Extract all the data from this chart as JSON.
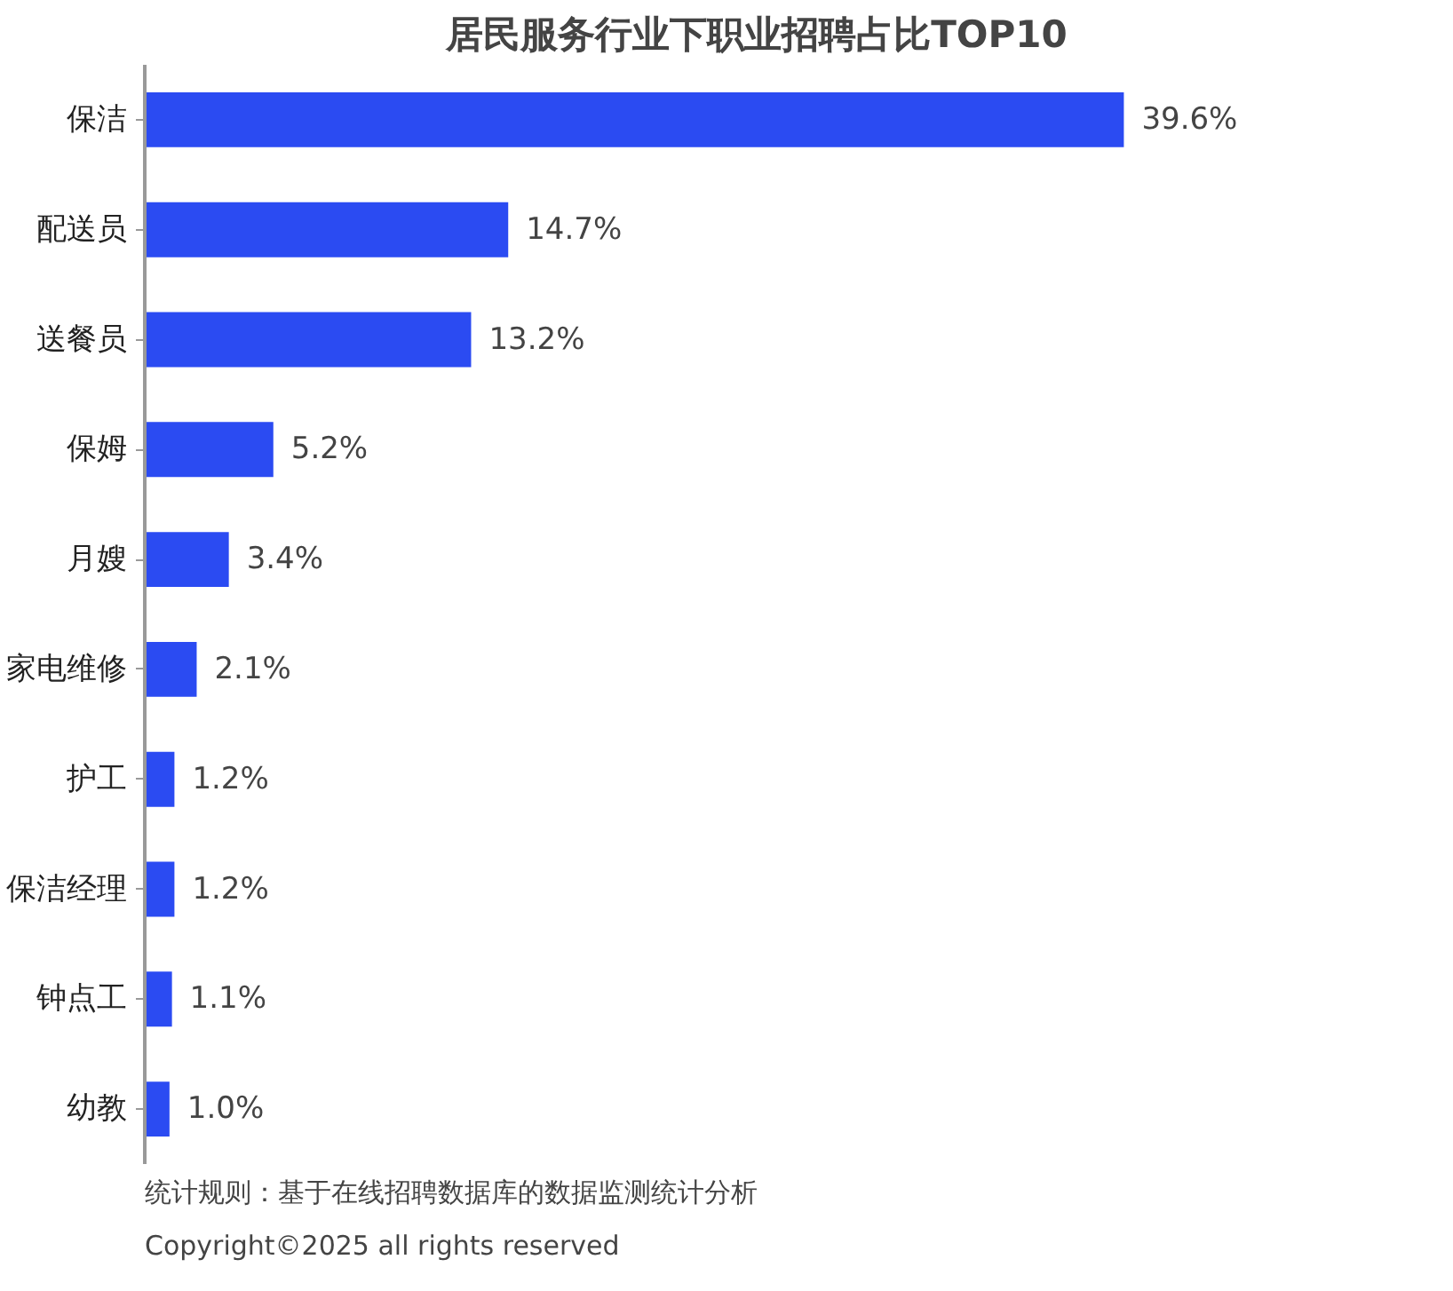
{
  "chart_data": {
    "type": "bar",
    "orientation": "horizontal",
    "title": "居民服务行业下职业招聘占比TOP10",
    "categories": [
      "保洁",
      "配送员",
      "送餐员",
      "保姆",
      "月嫂",
      "家电维修",
      "护工",
      "保洁经理",
      "钟点工",
      "幼教"
    ],
    "values": [
      39.6,
      14.7,
      13.2,
      5.2,
      3.4,
      2.1,
      1.2,
      1.2,
      1.1,
      1.0
    ],
    "value_labels": [
      "39.6%",
      "14.7%",
      "13.2%",
      "5.2%",
      "3.4%",
      "2.1%",
      "1.2%",
      "1.2%",
      "1.1%",
      "1.0%"
    ],
    "color": "#2b4bf2",
    "grid": false,
    "tick_labels": "y",
    "annotations": [
      "统计规则：基于在线招聘数据库的数据监测统计分析",
      "Copyright©2025 all rights reserved"
    ]
  }
}
